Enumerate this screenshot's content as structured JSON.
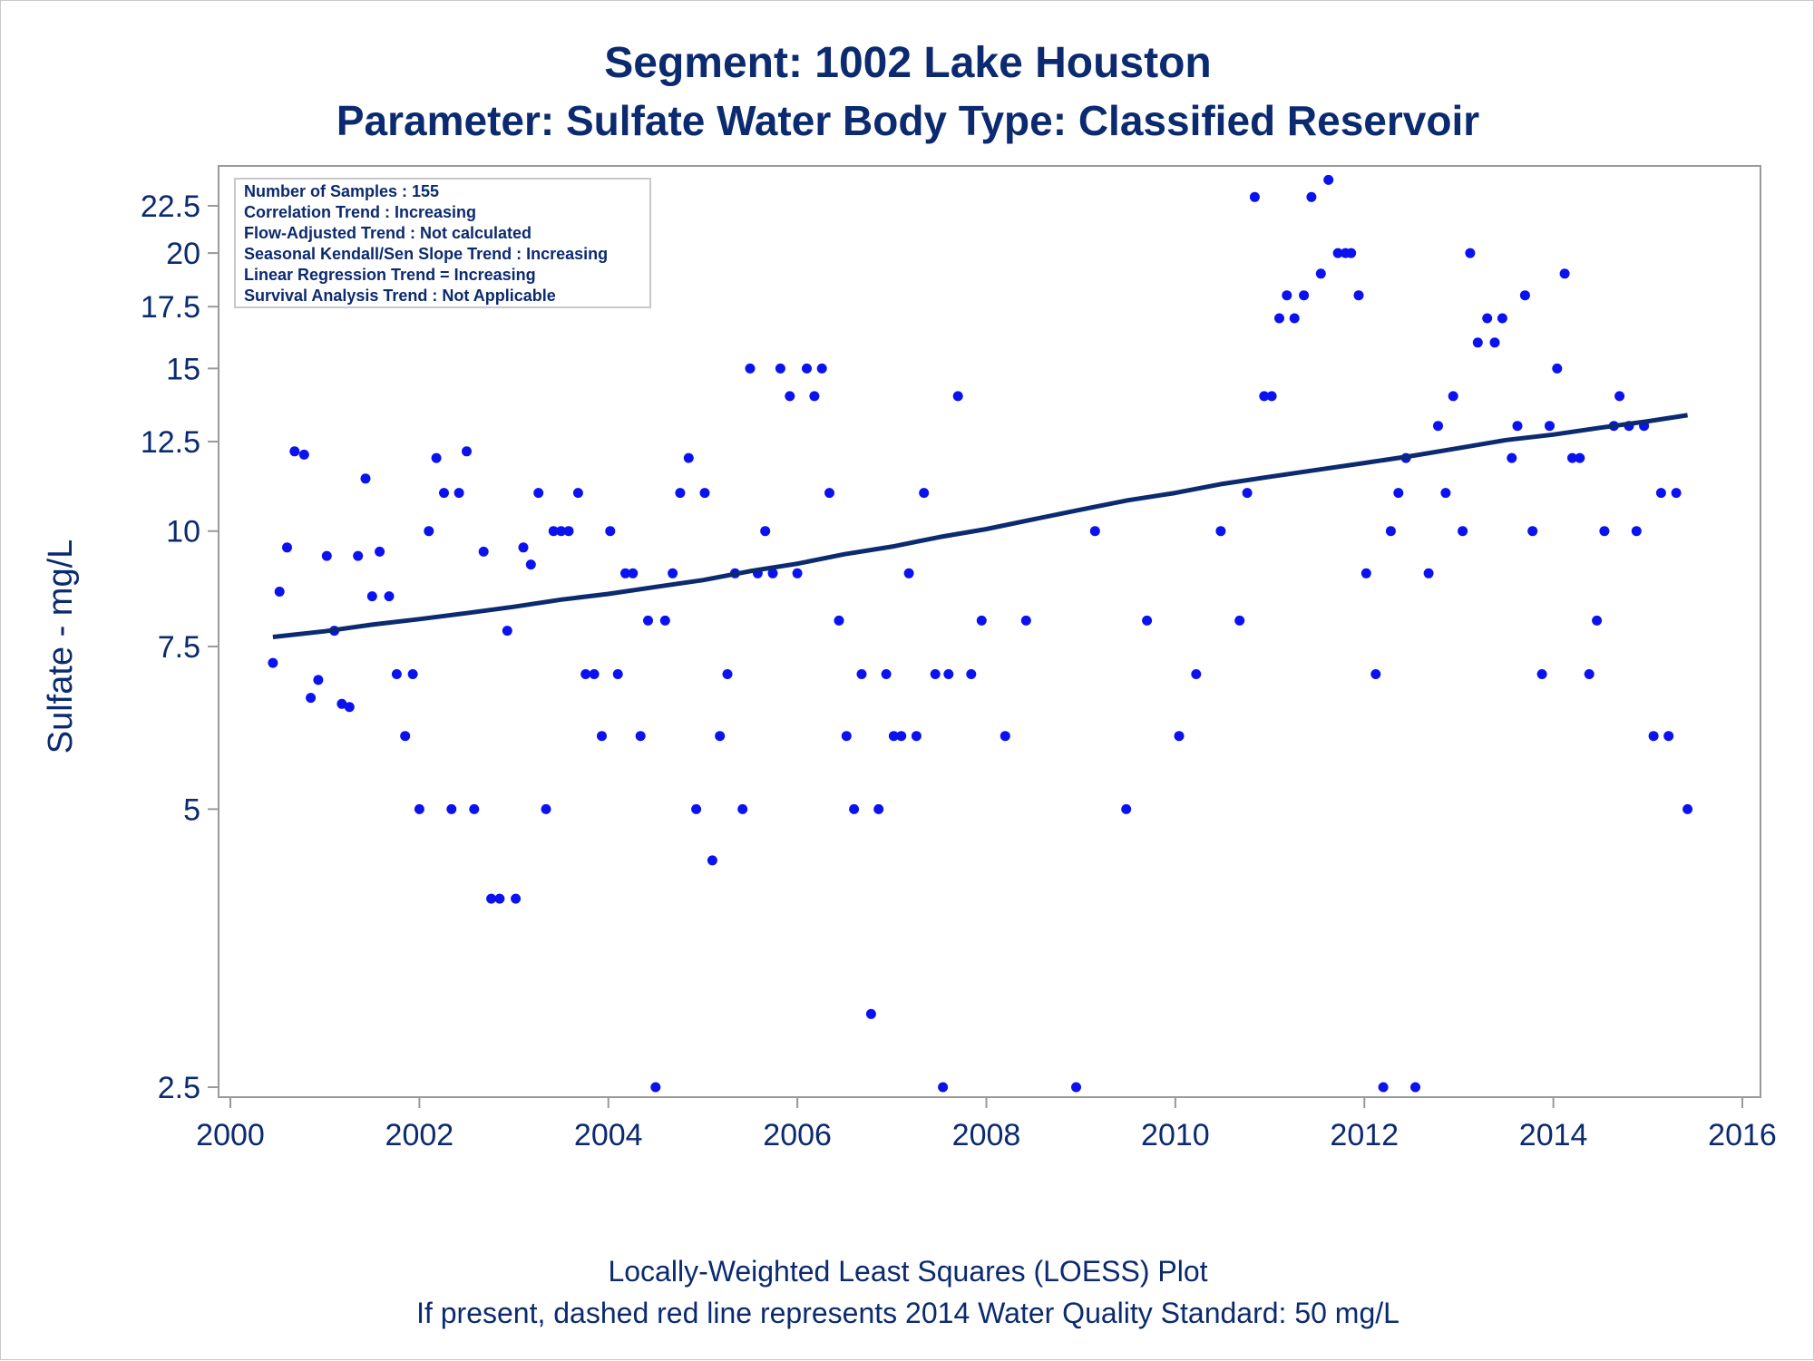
{
  "title": "Segment: 1002  Lake Houston",
  "subtitle": "Parameter: Sulfate   Water Body Type: Classified Reservoir",
  "footer": {
    "line1": "Locally-Weighted Least Squares (LOESS) Plot",
    "line2": "If present, dashed red line represents 2014 Water Quality Standard: 50    mg/L"
  },
  "inset": [
    "Number of Samples : 155",
    "Correlation Trend : Increasing",
    "Flow-Adjusted Trend : Not calculated",
    "Seasonal Kendall/Sen Slope Trend : Increasing",
    "Linear Regression Trend = Increasing",
    "Survival Analysis Trend : Not Applicable"
  ],
  "colors": {
    "points": "#0a12f0",
    "line": "#0b2a6f",
    "text": "#0b2a6f",
    "frame": "#9a9a9a"
  },
  "chart_data": {
    "type": "scatter",
    "title": "Segment: 1002  Lake Houston",
    "subtitle": "Parameter: Sulfate   Water Body Type: Classified Reservoir",
    "xlabel": "",
    "ylabel": "Sulfate - mg/L",
    "yscale": "log",
    "xlim": [
      2000,
      2016
    ],
    "ylim": [
      2.5,
      24
    ],
    "xticks": [
      "2000",
      "2002",
      "2004",
      "2006",
      "2008",
      "2010",
      "2012",
      "2014",
      "2016"
    ],
    "yticks": [
      "2.5",
      "5",
      "7.5",
      "10",
      "12.5",
      "15",
      "17.5",
      "20",
      "22.5"
    ],
    "grid": false,
    "series": [
      {
        "type": "scatter",
        "points": [
          [
            2000.45,
            7.2
          ],
          [
            2000.52,
            8.6
          ],
          [
            2000.6,
            9.6
          ],
          [
            2000.68,
            12.2
          ],
          [
            2000.78,
            12.1
          ],
          [
            2000.85,
            6.6
          ],
          [
            2000.93,
            6.9
          ],
          [
            2001.02,
            9.4
          ],
          [
            2001.1,
            7.8
          ],
          [
            2001.18,
            6.5
          ],
          [
            2001.26,
            6.45
          ],
          [
            2001.35,
            9.4
          ],
          [
            2001.43,
            11.4
          ],
          [
            2001.5,
            8.5
          ],
          [
            2001.58,
            9.5
          ],
          [
            2001.68,
            8.5
          ],
          [
            2001.76,
            7.0
          ],
          [
            2001.85,
            6.0
          ],
          [
            2001.93,
            7.0
          ],
          [
            2002.0,
            5.0
          ],
          [
            2002.1,
            10.0
          ],
          [
            2002.18,
            12.0
          ],
          [
            2002.26,
            11.0
          ],
          [
            2002.34,
            5.0
          ],
          [
            2002.42,
            11.0
          ],
          [
            2002.5,
            12.2
          ],
          [
            2002.58,
            5.0
          ],
          [
            2002.68,
            9.5
          ],
          [
            2002.76,
            4.0
          ],
          [
            2002.85,
            4.0
          ],
          [
            2002.93,
            7.8
          ],
          [
            2003.02,
            4.0
          ],
          [
            2003.1,
            9.6
          ],
          [
            2003.18,
            9.2
          ],
          [
            2003.26,
            11.0
          ],
          [
            2003.34,
            5.0
          ],
          [
            2003.42,
            10.0
          ],
          [
            2003.5,
            10.0
          ],
          [
            2003.58,
            10.0
          ],
          [
            2003.68,
            11.0
          ],
          [
            2003.76,
            7.0
          ],
          [
            2003.85,
            7.0
          ],
          [
            2003.93,
            6.0
          ],
          [
            2004.02,
            10.0
          ],
          [
            2004.1,
            7.0
          ],
          [
            2004.18,
            9.0
          ],
          [
            2004.26,
            9.0
          ],
          [
            2004.34,
            6.0
          ],
          [
            2004.42,
            8.0
          ],
          [
            2004.5,
            2.5
          ],
          [
            2004.6,
            8.0
          ],
          [
            2004.68,
            9.0
          ],
          [
            2004.76,
            11.0
          ],
          [
            2004.85,
            12.0
          ],
          [
            2004.93,
            5.0
          ],
          [
            2005.02,
            11.0
          ],
          [
            2005.1,
            4.4
          ],
          [
            2005.18,
            6.0
          ],
          [
            2005.26,
            7.0
          ],
          [
            2005.34,
            9.0
          ],
          [
            2005.42,
            5.0
          ],
          [
            2005.5,
            15.0
          ],
          [
            2005.58,
            9.0
          ],
          [
            2005.66,
            10.0
          ],
          [
            2005.74,
            9.0
          ],
          [
            2005.82,
            15.0
          ],
          [
            2005.92,
            14.0
          ],
          [
            2006.0,
            9.0
          ],
          [
            2006.1,
            15.0
          ],
          [
            2006.18,
            14.0
          ],
          [
            2006.26,
            15.0
          ],
          [
            2006.34,
            11.0
          ],
          [
            2006.44,
            8.0
          ],
          [
            2006.52,
            6.0
          ],
          [
            2006.6,
            5.0
          ],
          [
            2006.68,
            7.0
          ],
          [
            2006.78,
            3.0
          ],
          [
            2006.86,
            5.0
          ],
          [
            2006.94,
            7.0
          ],
          [
            2007.02,
            6.0
          ],
          [
            2007.1,
            6.0
          ],
          [
            2007.18,
            9.0
          ],
          [
            2007.26,
            6.0
          ],
          [
            2007.34,
            11.0
          ],
          [
            2007.46,
            7.0
          ],
          [
            2007.54,
            2.5
          ],
          [
            2007.6,
            7.0
          ],
          [
            2007.7,
            14.0
          ],
          [
            2007.84,
            7.0
          ],
          [
            2007.95,
            8.0
          ],
          [
            2008.2,
            6.0
          ],
          [
            2008.42,
            8.0
          ],
          [
            2008.95,
            2.5
          ],
          [
            2009.15,
            10.0
          ],
          [
            2009.48,
            5.0
          ],
          [
            2009.7,
            8.0
          ],
          [
            2010.04,
            6.0
          ],
          [
            2010.22,
            7.0
          ],
          [
            2010.48,
            10.0
          ],
          [
            2010.68,
            8.0
          ],
          [
            2010.76,
            11.0
          ],
          [
            2010.84,
            23.0
          ],
          [
            2010.94,
            14.0
          ],
          [
            2011.02,
            14.0
          ],
          [
            2011.1,
            17.0
          ],
          [
            2011.18,
            18.0
          ],
          [
            2011.26,
            17.0
          ],
          [
            2011.36,
            18.0
          ],
          [
            2011.44,
            23.0
          ],
          [
            2011.54,
            19.0
          ],
          [
            2011.62,
            24.0
          ],
          [
            2011.72,
            20.0
          ],
          [
            2011.8,
            20.0
          ],
          [
            2011.86,
            20.0
          ],
          [
            2011.94,
            18.0
          ],
          [
            2012.02,
            9.0
          ],
          [
            2012.12,
            7.0
          ],
          [
            2012.2,
            2.5
          ],
          [
            2012.28,
            10.0
          ],
          [
            2012.36,
            11.0
          ],
          [
            2012.44,
            12.0
          ],
          [
            2012.54,
            2.5
          ],
          [
            2012.68,
            9.0
          ],
          [
            2012.78,
            13.0
          ],
          [
            2012.86,
            11.0
          ],
          [
            2012.94,
            14.0
          ],
          [
            2013.04,
            10.0
          ],
          [
            2013.12,
            20.0
          ],
          [
            2013.2,
            16.0
          ],
          [
            2013.3,
            17.0
          ],
          [
            2013.38,
            16.0
          ],
          [
            2013.46,
            17.0
          ],
          [
            2013.56,
            12.0
          ],
          [
            2013.62,
            13.0
          ],
          [
            2013.7,
            18.0
          ],
          [
            2013.78,
            10.0
          ],
          [
            2013.88,
            7.0
          ],
          [
            2013.96,
            13.0
          ],
          [
            2014.04,
            15.0
          ],
          [
            2014.12,
            19.0
          ],
          [
            2014.2,
            12.0
          ],
          [
            2014.28,
            12.0
          ],
          [
            2014.38,
            7.0
          ],
          [
            2014.46,
            8.0
          ],
          [
            2014.54,
            10.0
          ],
          [
            2014.64,
            13.0
          ],
          [
            2014.7,
            14.0
          ],
          [
            2014.8,
            13.0
          ],
          [
            2014.88,
            10.0
          ],
          [
            2014.96,
            13.0
          ],
          [
            2015.06,
            6.0
          ],
          [
            2015.14,
            11.0
          ],
          [
            2015.22,
            6.0
          ],
          [
            2015.3,
            11.0
          ],
          [
            2015.42,
            5.0
          ]
        ]
      },
      {
        "type": "line",
        "points": [
          [
            2000.45,
            7.68
          ],
          [
            2001.0,
            7.79
          ],
          [
            2001.5,
            7.92
          ],
          [
            2002.0,
            8.03
          ],
          [
            2002.5,
            8.15
          ],
          [
            2003.0,
            8.28
          ],
          [
            2003.5,
            8.43
          ],
          [
            2004.0,
            8.55
          ],
          [
            2004.5,
            8.7
          ],
          [
            2005.0,
            8.85
          ],
          [
            2005.5,
            9.05
          ],
          [
            2006.0,
            9.22
          ],
          [
            2006.5,
            9.44
          ],
          [
            2007.0,
            9.62
          ],
          [
            2007.5,
            9.85
          ],
          [
            2008.0,
            10.05
          ],
          [
            2008.5,
            10.3
          ],
          [
            2009.0,
            10.55
          ],
          [
            2009.5,
            10.8
          ],
          [
            2010.0,
            11.0
          ],
          [
            2010.5,
            11.25
          ],
          [
            2011.0,
            11.45
          ],
          [
            2011.5,
            11.65
          ],
          [
            2012.0,
            11.85
          ],
          [
            2012.5,
            12.06
          ],
          [
            2013.0,
            12.3
          ],
          [
            2013.5,
            12.55
          ],
          [
            2014.0,
            12.72
          ],
          [
            2014.5,
            12.94
          ],
          [
            2015.0,
            13.15
          ],
          [
            2015.42,
            13.35
          ]
        ]
      }
    ]
  }
}
